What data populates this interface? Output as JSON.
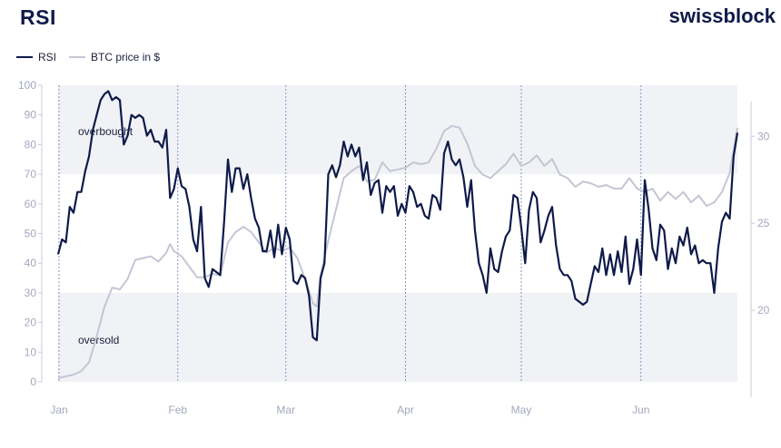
{
  "header": {
    "title": "RSI",
    "brand": "swissblock"
  },
  "legend": [
    {
      "name": "RSI",
      "color": "#0f1a4a"
    },
    {
      "name": "BTC price in $",
      "color": "#c4c6d4"
    }
  ],
  "chart_data": {
    "type": "line",
    "zones": {
      "overbought_label": "overbought",
      "overbought_threshold": 70,
      "oversold_label": "oversold",
      "oversold_threshold": 30
    },
    "y_left": {
      "ylim": [
        0,
        100
      ],
      "ticks": [
        "0",
        "10",
        "20",
        "30",
        "40",
        "50",
        "60",
        "70",
        "80",
        "90",
        "100"
      ]
    },
    "y_right": {
      "ylim": [
        15,
        32
      ],
      "ticks": [
        "20",
        "25",
        "30"
      ]
    },
    "x": {
      "range": [
        0,
        176
      ],
      "months": [
        {
          "label": "Jan",
          "pos": 0
        },
        {
          "label": "Feb",
          "pos": 31
        },
        {
          "label": "Mar",
          "pos": 59
        },
        {
          "label": "Apr",
          "pos": 90
        },
        {
          "label": "May",
          "pos": 120
        },
        {
          "label": "Jun",
          "pos": 151
        }
      ]
    },
    "series": [
      {
        "name": "RSI",
        "color": "#0f1a4a",
        "points": [
          [
            0,
            43
          ],
          [
            1,
            48
          ],
          [
            2,
            47
          ],
          [
            3,
            59
          ],
          [
            4,
            57
          ],
          [
            5,
            64
          ],
          [
            6,
            64
          ],
          [
            7,
            71
          ],
          [
            8,
            76
          ],
          [
            9,
            85
          ],
          [
            10,
            90
          ],
          [
            11,
            95
          ],
          [
            12,
            97
          ],
          [
            13,
            98
          ],
          [
            14,
            95
          ],
          [
            15,
            96
          ],
          [
            16,
            95
          ],
          [
            17,
            80
          ],
          [
            18,
            83
          ],
          [
            19,
            90
          ],
          [
            20,
            89
          ],
          [
            21,
            90
          ],
          [
            22,
            89
          ],
          [
            23,
            83
          ],
          [
            24,
            85
          ],
          [
            25,
            81
          ],
          [
            26,
            81
          ],
          [
            27,
            79
          ],
          [
            28,
            85
          ],
          [
            29,
            62
          ],
          [
            30,
            65
          ],
          [
            31,
            72
          ],
          [
            32,
            66
          ],
          [
            33,
            65
          ],
          [
            34,
            59
          ],
          [
            35,
            48
          ],
          [
            36,
            44
          ],
          [
            37,
            59
          ],
          [
            38,
            35
          ],
          [
            39,
            32
          ],
          [
            40,
            38
          ],
          [
            41,
            37
          ],
          [
            42,
            36
          ],
          [
            43,
            54
          ],
          [
            44,
            75
          ],
          [
            45,
            64
          ],
          [
            46,
            72
          ],
          [
            47,
            72
          ],
          [
            48,
            65
          ],
          [
            49,
            70
          ],
          [
            50,
            62
          ],
          [
            51,
            55
          ],
          [
            52,
            52
          ],
          [
            53,
            44
          ],
          [
            54,
            44
          ],
          [
            55,
            51
          ],
          [
            56,
            42
          ],
          [
            57,
            53
          ],
          [
            58,
            43
          ],
          [
            59,
            52
          ],
          [
            60,
            48
          ],
          [
            61,
            34
          ],
          [
            62,
            33
          ],
          [
            63,
            36
          ],
          [
            64,
            35
          ],
          [
            65,
            29
          ],
          [
            66,
            15
          ],
          [
            67,
            14
          ],
          [
            68,
            35
          ],
          [
            69,
            40
          ],
          [
            70,
            70
          ],
          [
            71,
            73
          ],
          [
            72,
            69
          ],
          [
            73,
            73
          ],
          [
            74,
            81
          ],
          [
            75,
            76
          ],
          [
            76,
            80
          ],
          [
            77,
            76
          ],
          [
            78,
            79
          ],
          [
            79,
            68
          ],
          [
            80,
            74
          ],
          [
            81,
            63
          ],
          [
            82,
            67
          ],
          [
            83,
            68
          ],
          [
            84,
            57
          ],
          [
            85,
            66
          ],
          [
            86,
            64
          ],
          [
            87,
            66
          ],
          [
            88,
            56
          ],
          [
            89,
            60
          ],
          [
            90,
            57
          ],
          [
            91,
            66
          ],
          [
            92,
            64
          ],
          [
            93,
            59
          ],
          [
            94,
            60
          ],
          [
            95,
            56
          ],
          [
            96,
            55
          ],
          [
            97,
            63
          ],
          [
            98,
            62
          ],
          [
            99,
            58
          ],
          [
            100,
            77
          ],
          [
            101,
            81
          ],
          [
            102,
            75
          ],
          [
            103,
            73
          ],
          [
            104,
            75
          ],
          [
            105,
            69
          ],
          [
            106,
            59
          ],
          [
            107,
            68
          ],
          [
            108,
            51
          ],
          [
            109,
            40
          ],
          [
            110,
            36
          ],
          [
            111,
            30
          ],
          [
            112,
            45
          ],
          [
            113,
            38
          ],
          [
            114,
            37
          ],
          [
            115,
            44
          ],
          [
            116,
            49
          ],
          [
            117,
            51
          ],
          [
            118,
            63
          ],
          [
            119,
            62
          ],
          [
            120,
            52
          ],
          [
            121,
            40
          ],
          [
            122,
            58
          ],
          [
            123,
            64
          ],
          [
            124,
            62
          ],
          [
            125,
            47
          ],
          [
            126,
            51
          ],
          [
            127,
            56
          ],
          [
            128,
            59
          ],
          [
            129,
            46
          ],
          [
            130,
            38
          ],
          [
            131,
            36
          ],
          [
            132,
            36
          ],
          [
            133,
            34
          ],
          [
            134,
            28
          ],
          [
            135,
            27
          ],
          [
            136,
            26
          ],
          [
            137,
            27
          ],
          [
            138,
            33
          ],
          [
            139,
            39
          ],
          [
            140,
            37
          ],
          [
            141,
            45
          ],
          [
            142,
            36
          ],
          [
            143,
            43
          ],
          [
            144,
            36
          ],
          [
            145,
            44
          ],
          [
            146,
            37
          ],
          [
            147,
            49
          ],
          [
            148,
            33
          ],
          [
            149,
            38
          ],
          [
            150,
            48
          ],
          [
            151,
            36
          ],
          [
            152,
            68
          ],
          [
            153,
            58
          ],
          [
            154,
            45
          ],
          [
            155,
            41
          ],
          [
            156,
            53
          ],
          [
            157,
            51
          ],
          [
            158,
            38
          ],
          [
            159,
            45
          ],
          [
            160,
            40
          ],
          [
            161,
            49
          ],
          [
            162,
            46
          ],
          [
            163,
            52
          ],
          [
            164,
            43
          ],
          [
            165,
            46
          ],
          [
            166,
            40
          ],
          [
            167,
            41
          ],
          [
            168,
            40
          ],
          [
            169,
            40
          ],
          [
            170,
            30
          ],
          [
            171,
            45
          ],
          [
            172,
            54
          ],
          [
            173,
            57
          ],
          [
            174,
            55
          ],
          [
            175,
            76
          ],
          [
            176,
            84
          ]
        ]
      },
      {
        "name": "BTC price in $",
        "color": "#c4c6d4",
        "points": [
          [
            0,
            16.1
          ],
          [
            2,
            16.2
          ],
          [
            4,
            16.3
          ],
          [
            6,
            16.5
          ],
          [
            8,
            17.0
          ],
          [
            10,
            18.5
          ],
          [
            12,
            20.2
          ],
          [
            14,
            21.3
          ],
          [
            16,
            21.2
          ],
          [
            18,
            21.8
          ],
          [
            20,
            22.9
          ],
          [
            22,
            23.0
          ],
          [
            24,
            23.1
          ],
          [
            26,
            22.8
          ],
          [
            28,
            23.3
          ],
          [
            29,
            23.8
          ],
          [
            30,
            23.4
          ],
          [
            32,
            23.1
          ],
          [
            34,
            22.5
          ],
          [
            36,
            21.9
          ],
          [
            38,
            21.9
          ],
          [
            40,
            22.1
          ],
          [
            42,
            22.0
          ],
          [
            44,
            23.9
          ],
          [
            46,
            24.5
          ],
          [
            48,
            24.8
          ],
          [
            50,
            24.5
          ],
          [
            52,
            23.9
          ],
          [
            54,
            23.3
          ],
          [
            56,
            23.6
          ],
          [
            58,
            23.4
          ],
          [
            60,
            23.6
          ],
          [
            62,
            23.0
          ],
          [
            64,
            21.8
          ],
          [
            66,
            20.4
          ],
          [
            67,
            20.2
          ],
          [
            68,
            22.0
          ],
          [
            70,
            24.0
          ],
          [
            72,
            25.8
          ],
          [
            74,
            27.6
          ],
          [
            76,
            28.0
          ],
          [
            78,
            28.3
          ],
          [
            80,
            27.4
          ],
          [
            82,
            27.5
          ],
          [
            84,
            28.5
          ],
          [
            86,
            28.0
          ],
          [
            88,
            28.1
          ],
          [
            90,
            28.2
          ],
          [
            92,
            28.5
          ],
          [
            94,
            28.4
          ],
          [
            96,
            28.5
          ],
          [
            98,
            29.3
          ],
          [
            100,
            30.3
          ],
          [
            102,
            30.6
          ],
          [
            104,
            30.5
          ],
          [
            106,
            29.6
          ],
          [
            108,
            28.3
          ],
          [
            110,
            27.8
          ],
          [
            112,
            27.6
          ],
          [
            114,
            28.0
          ],
          [
            116,
            28.4
          ],
          [
            118,
            29.0
          ],
          [
            120,
            28.3
          ],
          [
            122,
            28.5
          ],
          [
            124,
            28.9
          ],
          [
            126,
            28.3
          ],
          [
            128,
            28.7
          ],
          [
            130,
            27.8
          ],
          [
            132,
            27.6
          ],
          [
            134,
            27.1
          ],
          [
            136,
            27.4
          ],
          [
            138,
            27.3
          ],
          [
            140,
            27.1
          ],
          [
            142,
            27.2
          ],
          [
            144,
            27.0
          ],
          [
            146,
            27.0
          ],
          [
            148,
            27.6
          ],
          [
            150,
            27.0
          ],
          [
            152,
            26.8
          ],
          [
            154,
            27.0
          ],
          [
            156,
            26.3
          ],
          [
            158,
            26.8
          ],
          [
            160,
            26.4
          ],
          [
            162,
            26.8
          ],
          [
            164,
            26.2
          ],
          [
            166,
            26.6
          ],
          [
            168,
            26.0
          ],
          [
            170,
            26.2
          ],
          [
            172,
            26.8
          ],
          [
            174,
            27.9
          ],
          [
            176,
            30.5
          ]
        ]
      }
    ]
  }
}
